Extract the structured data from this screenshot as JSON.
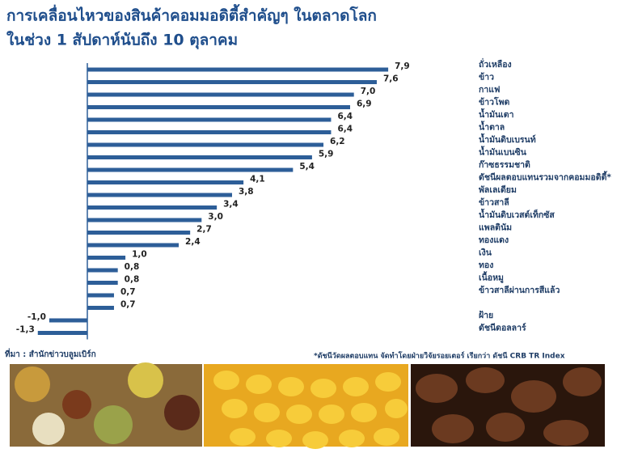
{
  "chart_data": {
    "type": "bar",
    "orientation": "horizontal",
    "title": "การเคลื่อนไหวของสินค้าคอมมอดิตี้สำคัญๆ ในตลาดโลก",
    "subtitle": "ในช่วง 1 สัปดาห์นับถึง 10 ตุลาคม",
    "categories": [
      "ถั่วเหลือง",
      "ข้าว",
      "กาแฟ",
      "ข้าวโพด",
      "น้ำมันเตา",
      "น้ำตาล",
      "น้ำมันดิบเบรนท์",
      "น้ำมันเบนซิน",
      "ก๊าซธรรมชาติ",
      "ดัชนีผลตอบแทนรวมจากคอมมอดิตี้*",
      "พัลเลเดียม",
      "ข้าวสาลี",
      "น้ำมันดิบเวสต์เท็กซัส",
      "แพลตินัม",
      "ทองแดง",
      "เงิน",
      "ทอง",
      "เนื้อหมู",
      "ข้าวสาลีผ่านการสีแล้ว",
      null,
      "ฝ้าย",
      "ดัชนีดอลลาร์"
    ],
    "values": [
      7.9,
      7.6,
      7.0,
      6.9,
      6.4,
      6.4,
      6.2,
      5.9,
      5.4,
      4.1,
      3.8,
      3.4,
      3.0,
      2.7,
      2.4,
      1.0,
      0.8,
      0.8,
      0.7,
      0.7,
      -1.0,
      -1.3
    ],
    "value_labels": [
      "7,9",
      "7,6",
      "7,0",
      "6,9",
      "6,4",
      "6,4",
      "6,2",
      "5,9",
      "5,4",
      "4,1",
      "3,8",
      "3,4",
      "3,0",
      "2,7",
      "2,4",
      "1,0",
      "0,8",
      "0,8",
      "0,7",
      "0,7",
      "-1,0",
      "-1,3"
    ],
    "color": "#2d5e98",
    "source": "ที่มา : สำนักข่าวบลูมเบิร์ก",
    "footnote": "*ดัชนีวัดผลตอบแทน จัดทำโดยฝ่ายวิจัยรอยเตอร์ เรียกว่า ดัชนี CRB TR Index"
  }
}
